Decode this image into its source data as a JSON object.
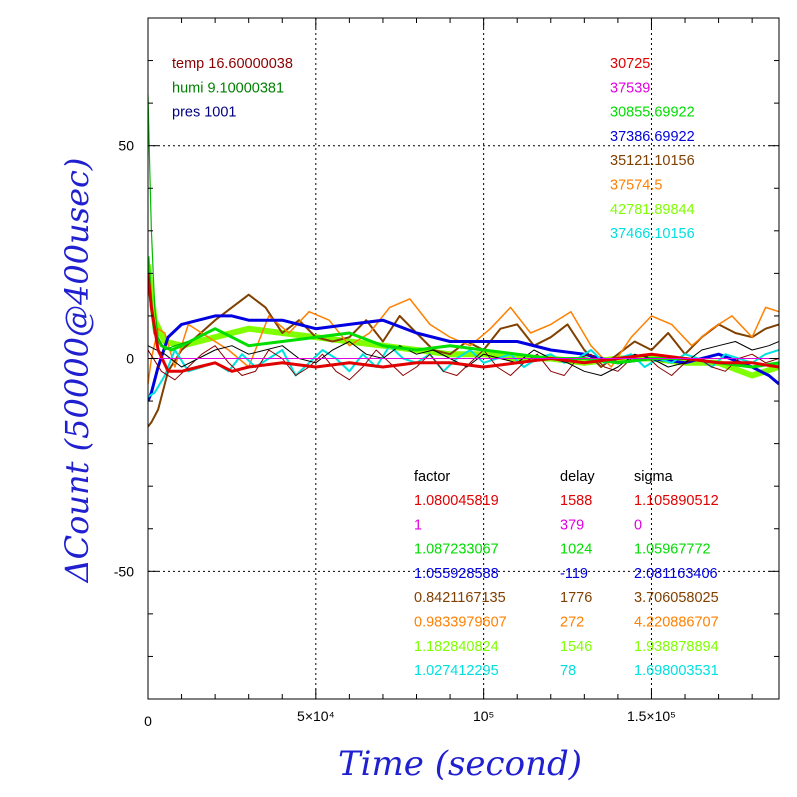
{
  "chart_data": {
    "type": "line",
    "xlabel": "Time (second)",
    "ylabel": "ΔCount (50000@400usec)",
    "xlim": [
      0,
      188000
    ],
    "ylim": [
      -80,
      80
    ],
    "x_ticks": [
      {
        "value": 0,
        "label": "0"
      },
      {
        "value": 50000,
        "label": "5×10⁴"
      },
      {
        "value": 100000,
        "label": "10⁵"
      },
      {
        "value": 150000,
        "label": "1.5×10⁵"
      }
    ],
    "y_ticks": [
      {
        "value": 50,
        "label": "50"
      },
      {
        "value": 0,
        "label": "0"
      },
      {
        "value": -50,
        "label": "-50"
      }
    ],
    "grid": true,
    "env_info": [
      {
        "text": "temp 16.60000038",
        "color": "#8b0000"
      },
      {
        "text": "humi 9.10000381",
        "color": "#008000"
      },
      {
        "text": "pres 1001",
        "color": "#000080"
      }
    ],
    "base_counts": [
      {
        "text": "30725",
        "color": "#e00000"
      },
      {
        "text": "37539",
        "color": "#e000e0"
      },
      {
        "text": "30855.69922",
        "color": "#00dd00"
      },
      {
        "text": "37386.69922",
        "color": "#0000e0"
      },
      {
        "text": "35121.10156",
        "color": "#804000"
      },
      {
        "text": "37574.5",
        "color": "#ff8000"
      },
      {
        "text": "42781.89844",
        "color": "#80ff00"
      },
      {
        "text": "37466.10156",
        "color": "#00e0e0"
      }
    ],
    "table_headers": [
      "factor",
      "delay",
      "sigma"
    ],
    "table_rows": [
      {
        "factor": "1.080045819",
        "delay": "1588",
        "sigma": "1.105890512",
        "color": "#e00000"
      },
      {
        "factor": "1",
        "delay": "379",
        "sigma": "0",
        "color": "#e000e0"
      },
      {
        "factor": "1.087233067",
        "delay": "1024",
        "sigma": "1.05967772",
        "color": "#00dd00"
      },
      {
        "factor": "1.055928588",
        "delay": "-119",
        "sigma": "2.081163406",
        "color": "#0000e0"
      },
      {
        "factor": "0.8421167135",
        "delay": "1776",
        "sigma": "3.706058025",
        "color": "#804000"
      },
      {
        "factor": "0.9833979607",
        "delay": "272",
        "sigma": "4.220886707",
        "color": "#ff8000"
      },
      {
        "factor": "1.182840824",
        "delay": "1546",
        "sigma": "1.938878894",
        "color": "#80ff00"
      },
      {
        "factor": "1.027412295",
        "delay": "78",
        "sigma": "1.698003531",
        "color": "#00e0e0"
      }
    ],
    "series": [
      {
        "color": "#80ff00",
        "width": 6,
        "x": [
          0,
          2000,
          5000,
          10000,
          20000,
          30000,
          40000,
          50000,
          60000,
          70000,
          80000,
          90000,
          100000,
          110000,
          120000,
          130000,
          140000,
          150000,
          160000,
          170000,
          180000,
          188000
        ],
        "y": [
          22,
          9,
          4,
          3,
          5,
          7,
          6,
          5,
          4,
          3,
          2,
          1,
          1,
          0,
          0,
          -1,
          0,
          0,
          -1,
          -1,
          -4,
          -2
        ]
      },
      {
        "color": "#804000",
        "width": 2,
        "x": [
          0,
          1000,
          3000,
          6000,
          10000,
          20000,
          25000,
          30000,
          35000,
          40000,
          45000,
          50000,
          55000,
          60000,
          65000,
          70000,
          75000,
          80000,
          85000,
          90000,
          95000,
          100000,
          105000,
          110000,
          115000,
          120000,
          125000,
          130000,
          135000,
          140000,
          145000,
          150000,
          155000,
          160000,
          165000,
          170000,
          175000,
          180000,
          184000,
          188000
        ],
        "y": [
          -16,
          -15,
          -12,
          -3,
          2,
          9,
          12,
          15,
          12,
          6,
          9,
          5,
          4,
          5,
          9,
          4,
          10,
          6,
          2,
          1,
          4,
          2,
          7,
          8,
          3,
          5,
          8,
          2,
          -2,
          1,
          4,
          2,
          6,
          1,
          5,
          8,
          6,
          5,
          7,
          8
        ]
      },
      {
        "color": "#ff8000",
        "width": 1.5,
        "x": [
          0,
          1000,
          3000,
          5000,
          8000,
          12000,
          18000,
          24000,
          30000,
          36000,
          42000,
          48000,
          54000,
          60000,
          66000,
          72000,
          78000,
          84000,
          90000,
          96000,
          102000,
          108000,
          114000,
          120000,
          126000,
          132000,
          138000,
          144000,
          150000,
          156000,
          162000,
          168000,
          174000,
          180000,
          184000,
          188000
        ],
        "y": [
          -6,
          0,
          7,
          6,
          -2,
          8,
          5,
          2,
          -2,
          10,
          6,
          11,
          9,
          3,
          6,
          12,
          14,
          8,
          5,
          3,
          7,
          12,
          6,
          8,
          11,
          3,
          -2,
          5,
          10,
          8,
          3,
          7,
          10,
          5,
          12,
          11
        ]
      },
      {
        "color": "#0000e0",
        "width": 3,
        "x": [
          0,
          1000,
          3000,
          6000,
          10000,
          15000,
          20000,
          25000,
          30000,
          40000,
          50000,
          60000,
          70000,
          80000,
          90000,
          100000,
          110000,
          120000,
          130000,
          140000,
          150000,
          160000,
          170000,
          180000,
          185000,
          188000
        ],
        "y": [
          -10,
          -8,
          -2,
          5,
          8,
          9,
          10,
          10,
          9,
          9,
          7,
          8,
          9,
          6,
          4,
          4,
          4,
          2,
          1,
          -1,
          0,
          -1,
          1,
          -2,
          -4,
          -6
        ]
      },
      {
        "color": "#00e0e0",
        "width": 2,
        "x": [
          0,
          2000,
          5000,
          8000,
          12000,
          16000,
          20000,
          24000,
          28000,
          32000,
          36000,
          40000,
          44000,
          48000,
          52000,
          56000,
          60000,
          64000,
          68000,
          72000,
          76000,
          80000,
          84000,
          88000,
          92000,
          96000,
          100000,
          104000,
          108000,
          112000,
          116000,
          120000,
          124000,
          128000,
          132000,
          136000,
          140000,
          144000,
          148000,
          152000,
          156000,
          160000,
          164000,
          168000,
          172000,
          176000,
          180000,
          184000,
          188000
        ],
        "y": [
          -9,
          -8,
          -4,
          2,
          -3,
          -2,
          -1,
          -3,
          1,
          -2,
          0,
          2,
          -4,
          -1,
          2,
          0,
          -3,
          1,
          -2,
          3,
          0,
          -1,
          1,
          -3,
          0,
          2,
          -1,
          0,
          1,
          -2,
          0,
          1,
          -1,
          0,
          2,
          -1,
          0,
          1,
          -2,
          0,
          -1,
          1,
          0,
          -2,
          1,
          0,
          -1,
          1,
          2
        ]
      },
      {
        "color": "#8b0000",
        "width": 1,
        "x": [
          0,
          4000,
          8000,
          12000,
          16000,
          20000,
          24000,
          28000,
          32000,
          36000,
          40000,
          44000,
          48000,
          52000,
          56000,
          60000,
          64000,
          68000,
          72000,
          76000,
          80000,
          84000,
          88000,
          92000,
          96000,
          100000,
          104000,
          108000,
          112000,
          116000,
          120000,
          124000,
          128000,
          132000,
          136000,
          140000,
          144000,
          148000,
          152000,
          156000,
          160000,
          164000,
          168000,
          172000,
          176000,
          180000,
          184000,
          188000
        ],
        "y": [
          2,
          -3,
          -5,
          -2,
          1,
          3,
          -1,
          -4,
          -3,
          2,
          0,
          -4,
          -2,
          1,
          -3,
          -5,
          -2,
          2,
          -1,
          -4,
          -2,
          1,
          -3,
          -4,
          -1,
          2,
          -2,
          -4,
          -1,
          1,
          -3,
          -4,
          0,
          1,
          -2,
          -3,
          0,
          1,
          -2,
          -4,
          -1,
          0,
          -2,
          -3,
          0,
          1,
          -1,
          0
        ]
      },
      {
        "color": "#000000",
        "width": 1,
        "x": [
          0,
          5000,
          10000,
          15000,
          20000,
          25000,
          30000,
          35000,
          40000,
          45000,
          50000,
          55000,
          60000,
          65000,
          70000,
          75000,
          80000,
          85000,
          90000,
          95000,
          100000,
          105000,
          110000,
          115000,
          120000,
          125000,
          130000,
          135000,
          140000,
          145000,
          150000,
          155000,
          160000,
          165000,
          170000,
          175000,
          180000,
          185000,
          188000
        ],
        "y": [
          3,
          1,
          -2,
          0,
          2,
          3,
          1,
          2,
          3,
          0,
          -1,
          2,
          4,
          1,
          0,
          3,
          1,
          2,
          0,
          -2,
          1,
          0,
          -1,
          2,
          0,
          -1,
          -3,
          -4,
          -2,
          1,
          0,
          -2,
          -1,
          2,
          3,
          4,
          2,
          3,
          4
        ]
      },
      {
        "color": "#00dd00",
        "width": 3,
        "x": [
          0,
          1000,
          2000,
          4000,
          7000,
          10000,
          15000,
          20000,
          25000,
          30000,
          40000,
          50000,
          60000,
          70000,
          80000,
          90000,
          100000,
          110000,
          120000,
          130000,
          140000,
          150000,
          160000,
          170000,
          180000,
          188000
        ],
        "y": [
          24,
          12,
          6,
          3,
          2,
          3,
          5,
          7,
          5,
          3,
          4,
          5,
          6,
          3,
          2,
          3,
          2,
          1,
          0,
          0,
          -1,
          0,
          0,
          -1,
          -2,
          -1
        ]
      },
      {
        "color": "#00bb00",
        "width": 1.2,
        "x": [
          0,
          500,
          1000,
          2000,
          3000,
          5000,
          8000,
          12000
        ],
        "y": [
          62,
          45,
          30,
          12,
          5,
          2,
          3,
          4
        ]
      },
      {
        "color": "#e00000",
        "width": 3,
        "x": [
          0,
          1000,
          3000,
          6000,
          10000,
          15000,
          20000,
          25000,
          30000,
          40000,
          50000,
          60000,
          70000,
          80000,
          90000,
          100000,
          110000,
          120000,
          130000,
          140000,
          150000,
          160000,
          170000,
          180000,
          188000
        ],
        "y": [
          20,
          12,
          2,
          -3,
          -3,
          -2,
          -1,
          -3,
          -2,
          -1,
          -2,
          -1,
          -2,
          -1,
          -1,
          -2,
          -1,
          0,
          -1,
          0,
          1,
          0,
          -1,
          -1,
          -2
        ]
      },
      {
        "color": "#e000e0",
        "width": 1,
        "x": [
          0,
          188000
        ],
        "y": [
          0,
          0
        ]
      }
    ]
  }
}
